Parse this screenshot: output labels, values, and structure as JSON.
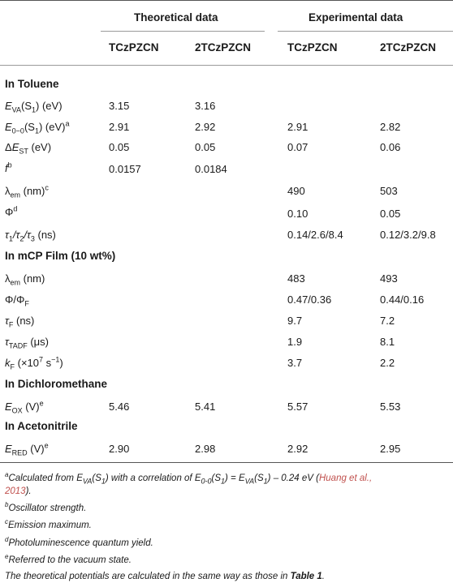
{
  "header": {
    "group_theoretical": "Theoretical data",
    "group_experimental": "Experimental data",
    "columns": [
      "TCzPZCN",
      "2TCzPZCN",
      "TCzPZCN",
      "2TCzPZCN"
    ]
  },
  "sections": {
    "toluene": "In Toluene",
    "mcp_film": "In mCP Film (10 wt%)",
    "dcm": "In Dichloromethane",
    "acn": "In Acetonitrile"
  },
  "rows": {
    "eva": {
      "cells": [
        "3.15",
        "3.16",
        "",
        ""
      ]
    },
    "e00": {
      "cells": [
        "2.91",
        "2.92",
        "2.91",
        "2.82"
      ]
    },
    "dest": {
      "cells": [
        "0.05",
        "0.05",
        "0.07",
        "0.06"
      ]
    },
    "f": {
      "cells": [
        "0.0157",
        "0.0184",
        "",
        ""
      ]
    },
    "lem": {
      "cells": [
        "",
        "",
        "490",
        "503"
      ]
    },
    "phi": {
      "cells": [
        "",
        "",
        "0.10",
        "0.05"
      ]
    },
    "tau": {
      "cells": [
        "",
        "",
        "0.14/2.6/8.4",
        "0.12/3.2/9.8"
      ]
    },
    "lem2": {
      "cells": [
        "",
        "",
        "483",
        "493"
      ]
    },
    "phiphf": {
      "cells": [
        "",
        "",
        "0.47/0.36",
        "0.44/0.16"
      ]
    },
    "tauf": {
      "cells": [
        "",
        "",
        "9.7",
        "7.2"
      ]
    },
    "taut": {
      "cells": [
        "",
        "",
        "1.9",
        "8.1"
      ]
    },
    "kf": {
      "cells": [
        "",
        "",
        "3.7",
        "2.2"
      ]
    },
    "eox": {
      "cells": [
        "5.46",
        "5.41",
        "5.57",
        "5.53"
      ]
    },
    "ered": {
      "cells": [
        "2.90",
        "2.98",
        "2.92",
        "2.95"
      ]
    }
  },
  "labels": {
    "eva": {
      "sym": "E",
      "sub": "VA",
      "rest": "(S",
      "sub2": "1",
      "rest2": ") (eV)"
    },
    "e00": {
      "sym": "E",
      "sub": "0−0",
      "rest": "(S",
      "sub2": "1",
      "rest2": ") (eV)",
      "sup": "a"
    },
    "dest": {
      "pre": "Δ",
      "sym": "E",
      "sub": "ST",
      "rest": " (eV)"
    },
    "f": {
      "sym": "f",
      "sup": "b"
    },
    "lem": {
      "sym": "λ",
      "sub": "em",
      "rest": " (nm)",
      "sup": "c"
    },
    "phi": {
      "sym": "Φ",
      "sup": "d"
    },
    "tau": {
      "text": "τ1/τ2/τ3 (ns)",
      "t1": "τ",
      "s1": "1",
      "t2": "/τ",
      "s2": "2",
      "t3": "/τ",
      "s3": "3",
      "rest": " (ns)"
    },
    "lem2": {
      "sym": "λ",
      "sub": "em",
      "rest": " (nm)"
    },
    "phiphf": {
      "sym": "Φ/Φ",
      "sub": "F"
    },
    "tauf": {
      "sym": "τ",
      "sub": "F",
      "rest": " (ns)"
    },
    "taut": {
      "sym": "τ",
      "sub": "TADF",
      "rest": " (μs)"
    },
    "kf": {
      "sym": "k",
      "sub": "F",
      "rest": " (×10",
      "sup": "7",
      "rest2": " s",
      "sup2": "−1",
      "rest3": ")"
    },
    "eox": {
      "sym": "E",
      "sub": "OX",
      "rest": " (V)",
      "sup": "e"
    },
    "ered": {
      "sym": "E",
      "sub": "RED",
      "rest": " (V)",
      "sup": "e"
    }
  },
  "footnotes": {
    "a_mark": "a",
    "a_line1_pre": "Calculated from ",
    "a_eva": "E",
    "a_eva_sub": "VA",
    "a_s1": "(S",
    "a_s1_sub": "1",
    "a_mid": ") with a correlation of ",
    "a_e00": "E",
    "a_e00_sub": "0-0",
    "a_s1b": "(S",
    "a_s1b_sub": "1",
    "a_eq": ") = ",
    "a_eva2": "E",
    "a_eva2_sub": "VA",
    "a_s1c": "(S",
    "a_s1c_sub": "1",
    "a_tail": ") – 0.24 eV (",
    "a_ref": "Huang et al.,",
    "a_line2_ref": "2013",
    "a_line2_tail": ").",
    "b_mark": "b",
    "b_text": "Oscillator strength.",
    "c_mark": "c",
    "c_text": "Emission maximum.",
    "d_mark": "d",
    "d_text": "Photoluminescence quantum yield.",
    "e_mark": "e",
    "e_text": "Referred to the vacuum state.",
    "final_pre": "The theoretical potentials are calculated in the same way as those in ",
    "final_bold": "Table 1",
    "final_post": "."
  }
}
